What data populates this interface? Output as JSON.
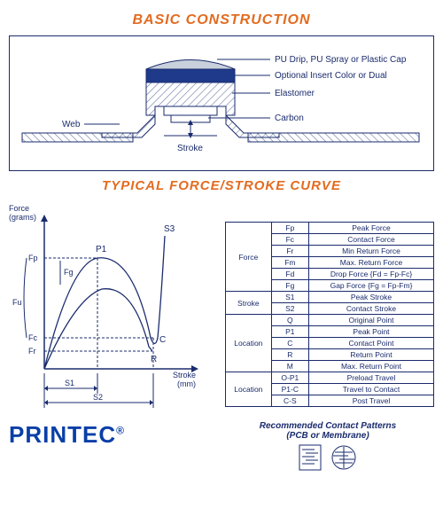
{
  "title1": "BASIC CONSTRUCTION",
  "title2": "TYPICAL FORCE/STROKE CURVE",
  "construction": {
    "labels": {
      "pu": "PU Drip, PU Spray or Plastic Cap",
      "insert": "Optional Insert Color or Dual",
      "elastomer": "Elastomer",
      "web": "Web",
      "carbon": "Carbon",
      "stroke": "Stroke"
    },
    "colors": {
      "cap_fill": "#c8d0db",
      "insert_fill": "#1f3a8a",
      "elastomer_fill": "#cccccc",
      "hatch": "#6b7ba8",
      "outline": "#1a2b6d"
    }
  },
  "chart": {
    "ylabel": "Force\n(grams)",
    "xlabel": "Stroke\n(mm)",
    "points": {
      "P1": "P1",
      "S3": "S3",
      "C": "C",
      "R": "R"
    },
    "ylabels": {
      "Fp": "Fp",
      "Fg": "Fg",
      "Fu": "Fu",
      "Fc": "Fc",
      "Fr": "Fr"
    },
    "xlabels": {
      "S1": "S1",
      "S2": "S2"
    },
    "colors": {
      "line": "#1a2b6d"
    }
  },
  "table": {
    "rows": [
      {
        "group": "Force",
        "items": [
          [
            "Fp",
            "Peak Force"
          ],
          [
            "Fc",
            "Contact Force"
          ],
          [
            "Fr",
            "Min Return Force"
          ],
          [
            "Fm",
            "Max. Return Force"
          ],
          [
            "Fd",
            "Drop Force {Fd = Fp-Fc}"
          ],
          [
            "Fg",
            "Gap Force {Fg = Fp-Fm}"
          ]
        ]
      },
      {
        "group": "Stroke",
        "items": [
          [
            "S1",
            "Peak Stroke"
          ],
          [
            "S2",
            "Contact Stroke"
          ]
        ]
      },
      {
        "group": "Location",
        "items": [
          [
            "Q",
            "Original Point"
          ],
          [
            "P1",
            "Peak Point"
          ],
          [
            "C",
            "Contact Point"
          ],
          [
            "R",
            "Return Point"
          ],
          [
            "M",
            "Max. Return Point"
          ]
        ]
      },
      {
        "group": "Location",
        "items": [
          [
            "O-P1",
            "Preload Travel"
          ],
          [
            "P1-C",
            "Travel to Contact"
          ],
          [
            "C-S",
            "Post Travel"
          ]
        ]
      }
    ]
  },
  "footer": {
    "logo": "PRINTEC",
    "recommend_line1": "Recommended Contact Patterns",
    "recommend_line2": "(PCB or Membrane)"
  }
}
